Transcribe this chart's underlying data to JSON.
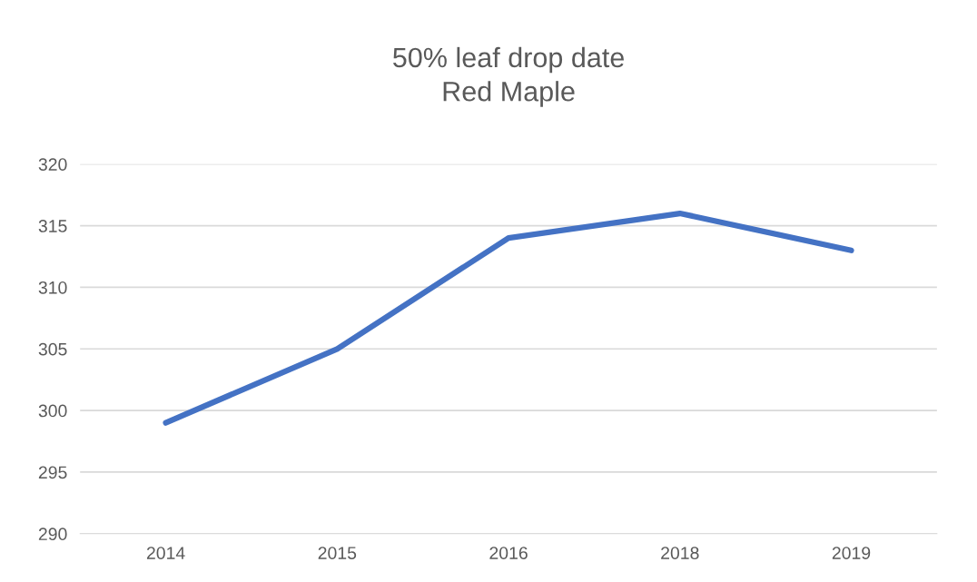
{
  "chart_data": {
    "type": "line",
    "title": "50% leaf drop date\nRed Maple",
    "categories": [
      "2014",
      "2015",
      "2016",
      "2018",
      "2019"
    ],
    "series": [
      {
        "color": "#4472c4",
        "values": [
          299,
          305,
          314,
          316,
          313
        ]
      }
    ],
    "ylim": [
      290,
      320
    ],
    "yticks": [
      290,
      295,
      300,
      305,
      310,
      315,
      320
    ],
    "grid": "y",
    "marker": "none",
    "line_style": "solid"
  }
}
